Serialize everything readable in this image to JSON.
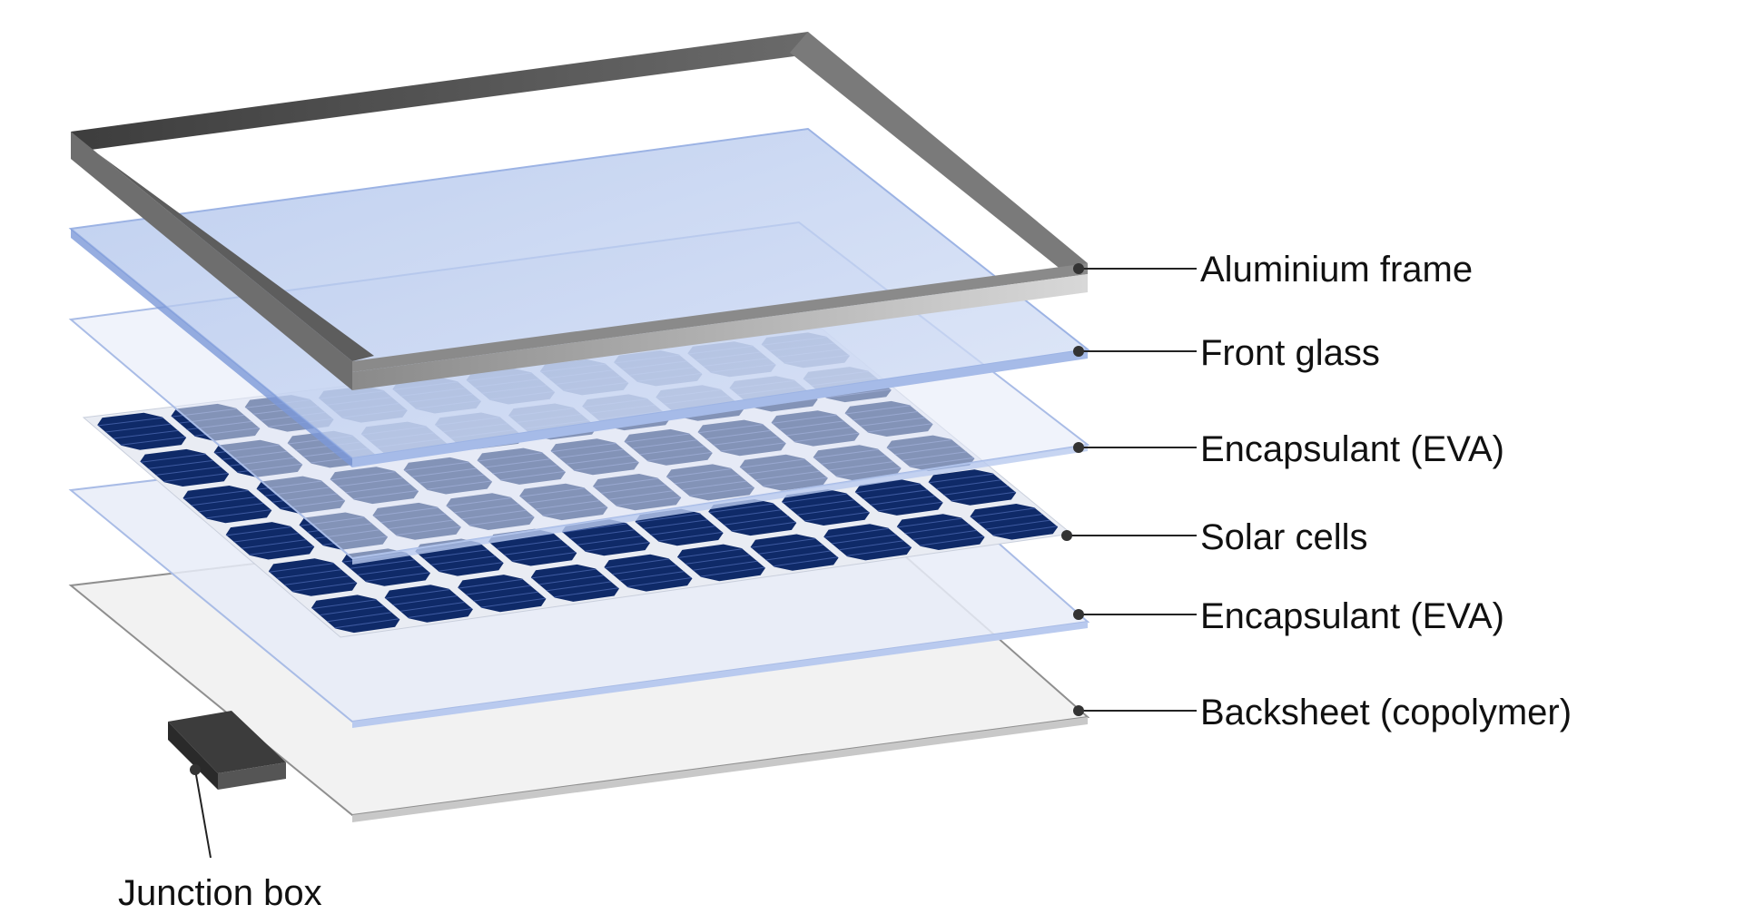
{
  "colors": {
    "frame_top": "#5a5a5a",
    "frame_side": "#9a9a9a",
    "glass": "#b9cbee",
    "eva": "#dfe7f8",
    "cell": "#0f2a68",
    "backsheet": "#f0f0f0",
    "junction_box": "#4a4a4a"
  },
  "layers": [
    {
      "id": "frame",
      "label": "Aluminium frame"
    },
    {
      "id": "glass",
      "label": "Front glass"
    },
    {
      "id": "eva_top",
      "label": "Encapsulant (EVA)"
    },
    {
      "id": "cells",
      "label": "Solar cells"
    },
    {
      "id": "eva_bottom",
      "label": "Encapsulant (EVA)"
    },
    {
      "id": "backsheet",
      "label": "Backsheet (copolymer)"
    }
  ],
  "junction_box": {
    "label": "Junction box"
  },
  "cell_grid": {
    "rows": 6,
    "cols": 10
  }
}
